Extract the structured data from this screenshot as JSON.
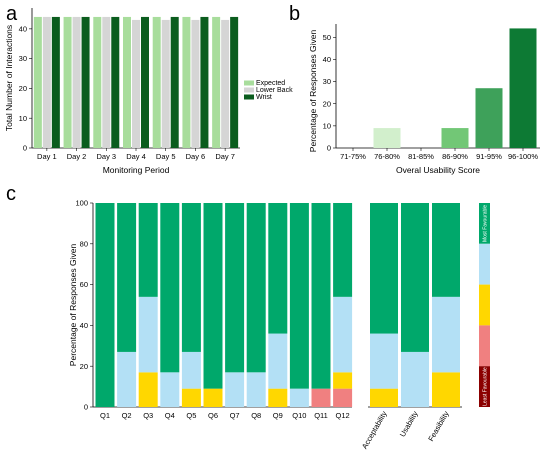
{
  "chart_data": [
    {
      "panel": "a",
      "type": "bar",
      "categories": [
        "Day 1",
        "Day 2",
        "Day 3",
        "Day 4",
        "Day 5",
        "Day 6",
        "Day 7"
      ],
      "series": [
        {
          "name": "Expected",
          "values": [
            44,
            44,
            44,
            44,
            44,
            44,
            44
          ]
        },
        {
          "name": "Lower Back",
          "values": [
            44,
            44,
            44,
            43,
            43,
            43,
            43
          ]
        },
        {
          "name": "Wrist",
          "values": [
            44,
            44,
            44,
            44,
            44,
            44,
            44
          ]
        }
      ],
      "xlabel": "Monitoring Period",
      "ylabel": "Total Number of Interactions",
      "ylim": [
        0,
        47
      ],
      "yticks": [
        0,
        10,
        20,
        30,
        40
      ],
      "legend": "right",
      "colors": {
        "Expected": "#a8dd9c",
        "Lower Back": "#d5d5d5",
        "Wrist": "#0b5d1e"
      },
      "grid": false
    },
    {
      "panel": "b",
      "type": "bar",
      "categories": [
        "71-75%",
        "76-80%",
        "81-85%",
        "86-90%",
        "91-95%",
        "96-100%"
      ],
      "values": [
        0,
        9,
        0,
        9,
        27,
        54
      ],
      "xlabel": "Overal Usability Score",
      "ylabel": "Percentage of Responses Given",
      "ylim": [
        0,
        56
      ],
      "yticks": [
        0,
        10,
        20,
        30,
        40,
        50
      ],
      "colors": [
        "#eef7ea",
        "#d2efcc",
        "#b6e3ad",
        "#72c776",
        "#3ea15a",
        "#0d7a34"
      ],
      "grid": false
    },
    {
      "panel": "c",
      "type": "bar",
      "stacked": true,
      "categories": [
        "Q1",
        "Q2",
        "Q3",
        "Q4",
        "Q5",
        "Q6",
        "Q7",
        "Q8",
        "Q9",
        "Q10",
        "Q11",
        "Q12",
        "Acceptability",
        "Usability",
        "Feasibility"
      ],
      "series": [
        {
          "key": "least",
          "values": [
            0,
            0,
            0,
            0,
            0,
            0,
            0,
            0,
            0,
            0,
            0,
            0,
            0,
            0,
            0
          ]
        },
        {
          "key": "low",
          "values": [
            0,
            0,
            0,
            0,
            0,
            0,
            0,
            0,
            0,
            0,
            9,
            9,
            0,
            0,
            0
          ]
        },
        {
          "key": "neutral",
          "values": [
            0,
            0,
            17,
            0,
            9,
            9,
            0,
            0,
            9,
            0,
            0,
            8,
            9,
            0,
            17
          ]
        },
        {
          "key": "high",
          "values": [
            0,
            27,
            37,
            17,
            18,
            0,
            17,
            17,
            27,
            9,
            0,
            37,
            27,
            27,
            37
          ]
        },
        {
          "key": "most",
          "values": [
            100,
            73,
            46,
            83,
            73,
            91,
            83,
            83,
            64,
            91,
            91,
            46,
            64,
            73,
            46
          ]
        }
      ],
      "ylabel": "Percentage of Responses Given",
      "ylim": [
        0,
        100
      ],
      "yticks": [
        0,
        20,
        40,
        60,
        80,
        100
      ],
      "colors": {
        "most": "#00a86b",
        "high": "#b3e0f5",
        "neutral": "#ffd700",
        "low": "#f08080",
        "least": "#8b0000"
      },
      "scale_labels": {
        "top": "Most Favourable",
        "bottom": "Least Favourable"
      },
      "grid": false
    }
  ],
  "panel_labels": {
    "a": "a",
    "b": "b",
    "c": "c"
  }
}
